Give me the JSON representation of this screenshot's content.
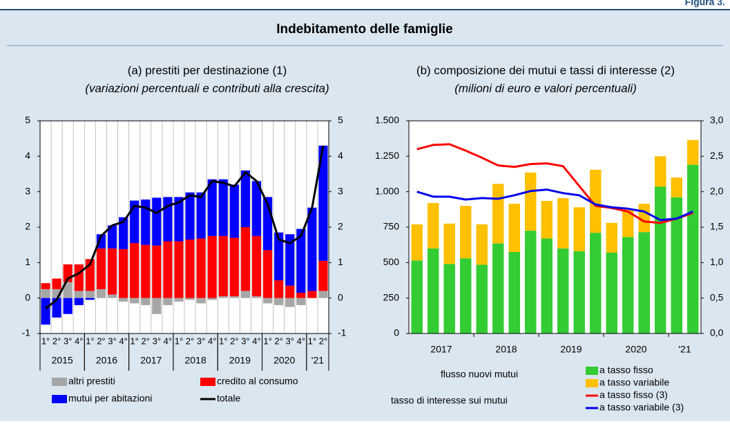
{
  "figure_label": "Figura 3.",
  "title": "Indebitamento delle famiglie",
  "chart_data": [
    {
      "type": "bar",
      "stacked": true,
      "title": "(a) prestiti per destinazione (1)",
      "subtitle": "(variazioni percentuali e contributi alla crescita)",
      "categories": [
        "1°",
        "2°",
        "3°",
        "4°",
        "1°",
        "2°",
        "3°",
        "4°",
        "1°",
        "2°",
        "3°",
        "4°",
        "1°",
        "2°",
        "3°",
        "4°",
        "1°",
        "2°",
        "3°",
        "4°",
        "1°",
        "2°",
        "3°",
        "4°",
        "1°",
        "2°"
      ],
      "groups": [
        {
          "label": "2015",
          "count": 4
        },
        {
          "label": "2016",
          "count": 4
        },
        {
          "label": "2017",
          "count": 4
        },
        {
          "label": "2018",
          "count": 4
        },
        {
          "label": "2019",
          "count": 4
        },
        {
          "label": "2020",
          "count": 4
        },
        {
          "label": "'21",
          "count": 2
        }
      ],
      "ylim": [
        -1,
        5
      ],
      "yticks": [
        -1,
        0,
        1,
        2,
        3,
        4,
        5
      ],
      "y2lim": [
        -1,
        5
      ],
      "y2ticks": [
        -1,
        0,
        1,
        2,
        3,
        4,
        5
      ],
      "series": [
        {
          "name": "altri prestiti",
          "type": "bar",
          "color": "#a6a6a6",
          "values": [
            0.25,
            0.25,
            0.45,
            0.2,
            0.2,
            0.25,
            0.1,
            -0.1,
            -0.15,
            -0.2,
            -0.45,
            -0.2,
            -0.1,
            -0.05,
            -0.15,
            -0.05,
            0.05,
            0.05,
            0.2,
            0.05,
            -0.15,
            -0.2,
            -0.25,
            -0.2,
            0.0,
            0.2
          ]
        },
        {
          "name": "credito al consumo",
          "type": "bar",
          "color": "#ff0000",
          "values": [
            0.17,
            0.3,
            0.5,
            0.75,
            0.9,
            1.15,
            1.3,
            1.38,
            1.55,
            1.5,
            1.48,
            1.6,
            1.6,
            1.65,
            1.68,
            1.75,
            1.7,
            1.65,
            1.8,
            1.7,
            1.35,
            0.5,
            0.35,
            0.15,
            0.2,
            0.85
          ]
        },
        {
          "name": "mutui per abitazioni",
          "type": "bar",
          "color": "#0000ff",
          "values": [
            -0.75,
            -0.55,
            -0.45,
            -0.2,
            -0.05,
            0.4,
            0.65,
            0.9,
            1.2,
            1.28,
            1.35,
            1.25,
            1.25,
            1.33,
            1.3,
            1.6,
            1.6,
            1.5,
            1.6,
            1.55,
            1.5,
            1.35,
            1.45,
            1.8,
            2.35,
            3.25
          ]
        },
        {
          "name": "totale",
          "type": "line",
          "color": "#000000",
          "values": [
            -0.3,
            -0.05,
            0.55,
            0.7,
            0.95,
            1.75,
            2.05,
            2.15,
            2.6,
            2.55,
            2.4,
            2.6,
            2.7,
            2.9,
            2.85,
            3.3,
            3.25,
            3.15,
            3.55,
            3.3,
            2.65,
            1.65,
            1.55,
            1.75,
            2.55,
            4.3
          ]
        }
      ]
    },
    {
      "type": "bar",
      "stacked": true,
      "title": "(b) composizione dei mutui e tassi di interesse (2)",
      "subtitle": "(milioni di euro e valori percentuali)",
      "groups": [
        {
          "label": "2017",
          "count": 4
        },
        {
          "label": "2018",
          "count": 4
        },
        {
          "label": "2019",
          "count": 4
        },
        {
          "label": "2020",
          "count": 4
        },
        {
          "label": "'21",
          "count": 2
        }
      ],
      "ylim": [
        0,
        1500
      ],
      "yticks": [
        0,
        250,
        500,
        750,
        {
          "value": 1000,
          "label": "1.000"
        },
        {
          "value": 1250,
          "label": "1.250"
        },
        {
          "value": 1500,
          "label": "1.500"
        }
      ],
      "y2lim": [
        0,
        3
      ],
      "y2ticks": [
        {
          "value": 0,
          "label": "0,0"
        },
        {
          "value": 0.5,
          "label": "0,5"
        },
        {
          "value": 1,
          "label": "1,0"
        },
        {
          "value": 1.5,
          "label": "1,5"
        },
        {
          "value": 2,
          "label": "2,0"
        },
        {
          "value": 2.5,
          "label": "2,5"
        },
        {
          "value": 3,
          "label": "3,0"
        }
      ],
      "legend_groups": [
        "flusso nuovi mutui",
        "tasso di interesse sui mutui"
      ],
      "series": [
        {
          "name": "a tasso fisso",
          "type": "bar",
          "color": "#33cc33",
          "values": [
            515,
            600,
            490,
            530,
            485,
            635,
            575,
            725,
            670,
            600,
            580,
            710,
            570,
            680,
            715,
            1035,
            960,
            1190
          ]
        },
        {
          "name": "a tasso variabile",
          "type": "bar",
          "color": "#ffc000",
          "values": [
            255,
            320,
            285,
            370,
            285,
            420,
            340,
            410,
            265,
            355,
            310,
            445,
            210,
            200,
            200,
            215,
            140,
            175
          ]
        },
        {
          "name": "a tasso fisso (3)",
          "type": "line",
          "axis": "y2",
          "color": "#ff0000",
          "values": [
            2.6,
            2.66,
            2.67,
            2.58,
            2.48,
            2.37,
            2.35,
            2.39,
            2.4,
            2.36,
            2.08,
            1.8,
            1.77,
            1.72,
            1.58,
            1.56,
            1.62,
            1.7
          ]
        },
        {
          "name": "a tasso variabile (3)",
          "type": "line",
          "axis": "y2",
          "color": "#0000ee",
          "values": [
            2.0,
            1.93,
            1.93,
            1.89,
            1.91,
            1.9,
            1.95,
            2.01,
            2.03,
            1.98,
            1.95,
            1.82,
            1.78,
            1.76,
            1.72,
            1.6,
            1.62,
            1.72
          ]
        }
      ]
    }
  ]
}
